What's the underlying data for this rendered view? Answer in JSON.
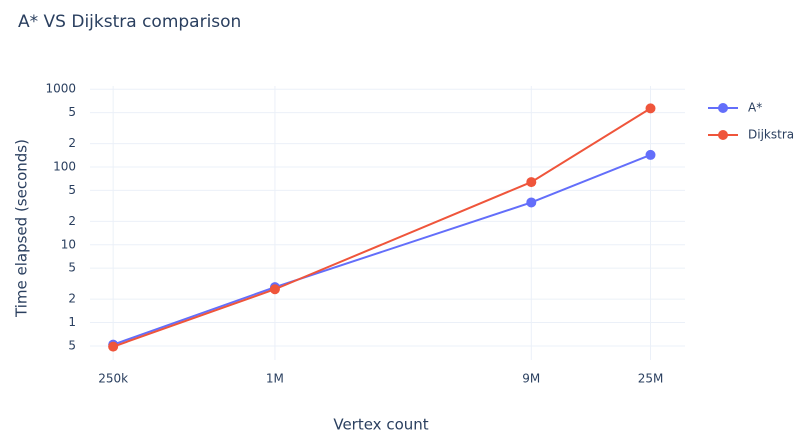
{
  "chart_data": {
    "type": "line",
    "title": "A* VS Dijkstra comparison",
    "x_label": "Vertex count",
    "y_label": "Time elapsed (seconds)",
    "x": [
      250000,
      1000000,
      9000000,
      25000000
    ],
    "x_log": true,
    "y_log": true,
    "xlim": [
      205000,
      33600000
    ],
    "xticks": [
      {
        "value": 250000,
        "label": "250k"
      },
      {
        "value": 1000000,
        "label": "1M"
      },
      {
        "value": 9000000,
        "label": "9M"
      },
      {
        "value": 25000000,
        "label": "25M"
      }
    ],
    "ylim": [
      0.33,
      1100
    ],
    "yticks": [
      {
        "value": 0.5,
        "label": "5"
      },
      1,
      2,
      5,
      10,
      {
        "value": 20,
        "label": "2"
      },
      {
        "value": 50,
        "label": "5"
      },
      100,
      {
        "value": 200,
        "label": "2"
      },
      {
        "value": 500,
        "label": "5"
      },
      1000
    ],
    "grid": true,
    "legend": "top-right",
    "series": [
      {
        "name": "A*",
        "color": "#636efa",
        "values": [
          0.52,
          2.85,
          35,
          143
        ]
      },
      {
        "name": "Dijkstra",
        "color": "#ef553b",
        "values": [
          0.49,
          2.68,
          64,
          567
        ]
      }
    ]
  }
}
